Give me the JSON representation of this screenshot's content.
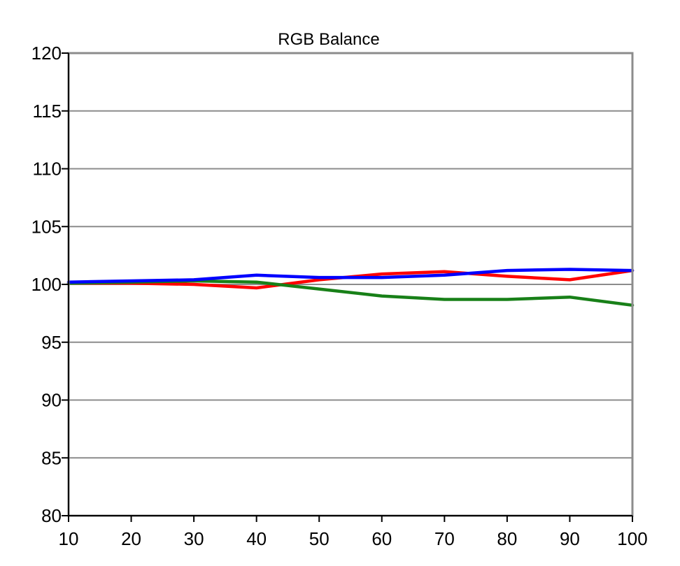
{
  "chart_data": {
    "type": "line",
    "title": "RGB Balance",
    "xlabel": "",
    "ylabel": "",
    "x": [
      10,
      20,
      30,
      40,
      50,
      60,
      70,
      80,
      90,
      100
    ],
    "xlim": [
      10,
      100
    ],
    "ylim": [
      80,
      120
    ],
    "xticks": [
      10,
      20,
      30,
      40,
      50,
      60,
      70,
      80,
      90,
      100
    ],
    "yticks": [
      80,
      85,
      90,
      95,
      100,
      105,
      110,
      115,
      120
    ],
    "grid": true,
    "legend": "none",
    "series": [
      {
        "color": "#ff0000",
        "values": [
          100.1,
          100.1,
          100.0,
          99.7,
          100.4,
          100.9,
          101.1,
          100.7,
          100.4,
          101.2
        ]
      },
      {
        "color": "#188018",
        "values": [
          100.1,
          100.2,
          100.3,
          100.2,
          99.6,
          99.0,
          98.7,
          98.7,
          98.9,
          98.2
        ]
      },
      {
        "color": "#0000ff",
        "values": [
          100.2,
          100.3,
          100.4,
          100.8,
          100.6,
          100.6,
          100.8,
          101.2,
          101.3,
          101.2
        ]
      }
    ]
  }
}
